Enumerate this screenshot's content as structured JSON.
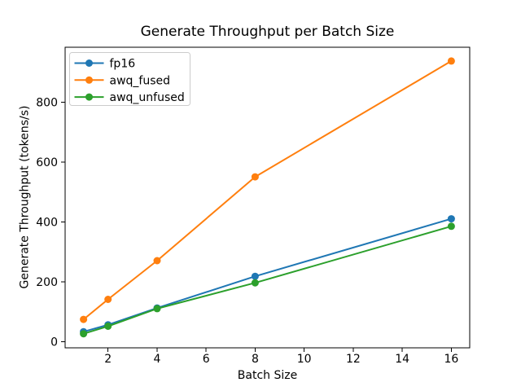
{
  "figure": {
    "background": "#ffffff",
    "text_color": "#000000",
    "spine_color": "#000000",
    "legend_border_color": "#cccccc"
  },
  "chart_data": {
    "type": "line",
    "title": "Generate Throughput per Batch Size",
    "xlabel": "Batch Size",
    "ylabel": "Generate Throughput (tokens/s)",
    "x": [
      1,
      2,
      4,
      8,
      16
    ],
    "series": [
      {
        "name": "fp16",
        "color": "#1f77b4",
        "values": [
          33,
          56,
          112,
          218,
          410
        ]
      },
      {
        "name": "awq_fused",
        "color": "#ff7f0e",
        "values": [
          74,
          141,
          270,
          550,
          937
        ]
      },
      {
        "name": "awq_unfused",
        "color": "#2ca02c",
        "values": [
          26,
          51,
          110,
          196,
          385
        ]
      }
    ],
    "xticks": [
      2,
      4,
      6,
      8,
      10,
      12,
      14,
      16
    ],
    "yticks": [
      0,
      200,
      400,
      600,
      800
    ],
    "xlim": [
      0.25,
      16.75
    ],
    "ylim": [
      -21,
      983
    ],
    "grid": false,
    "marker": "circle",
    "legend_position": "upper left"
  }
}
